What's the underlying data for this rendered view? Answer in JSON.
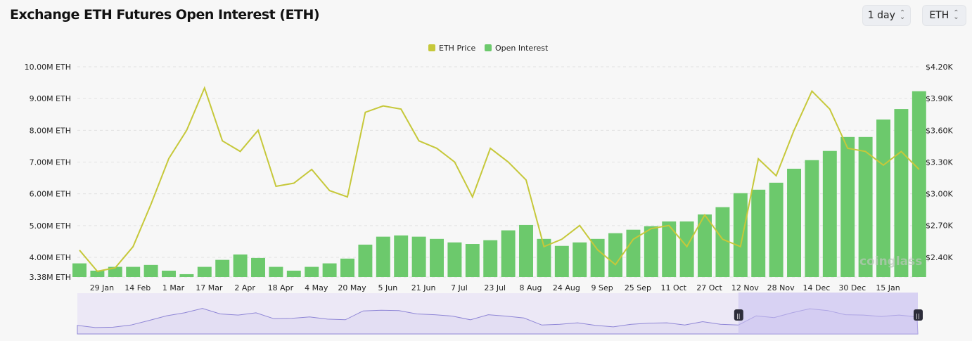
{
  "title": "Exchange ETH Futures Open Interest (ETH)",
  "controls": {
    "interval": "1 day",
    "coin": "ETH"
  },
  "watermark": "coinglass",
  "chart_data": {
    "type": "bar+line",
    "legend": [
      "ETH Price",
      "Open Interest"
    ],
    "legend_position": "top-center",
    "colors": {
      "price": "#c6c83a",
      "oi": "#6cc96c",
      "navigator": "#8f86d6"
    },
    "y_left": {
      "ticks": [
        "10.00M ETH",
        "9.00M ETH",
        "8.00M ETH",
        "7.00M ETH",
        "6.00M ETH",
        "5.00M ETH",
        "4.00M ETH",
        "3.38M ETH"
      ],
      "range": [
        3.38,
        10.0
      ],
      "unit": "M ETH"
    },
    "y_right": {
      "ticks": [
        "$4.20K",
        "$3.90K",
        "$3.60K",
        "$3.30K",
        "$3.00K",
        "$2.70K",
        "$2.40K"
      ],
      "range": [
        2213,
        4200
      ]
    },
    "x_ticks": [
      "29 Jan",
      "14 Feb",
      "1 Mar",
      "17 Mar",
      "2 Apr",
      "18 Apr",
      "4 May",
      "20 May",
      "5 Jun",
      "21 Jun",
      "7 Jul",
      "23 Jul",
      "8 Aug",
      "24 Aug",
      "9 Sep",
      "25 Sep",
      "11 Oct",
      "27 Oct",
      "12 Nov",
      "28 Nov",
      "14 Dec",
      "30 Dec",
      "15 Jan"
    ],
    "x": [
      "2024-01-18",
      "2024-01-26",
      "2024-02-03",
      "2024-02-11",
      "2024-02-19",
      "2024-02-27",
      "2024-03-06",
      "2024-03-14",
      "2024-03-22",
      "2024-03-30",
      "2024-04-07",
      "2024-04-15",
      "2024-04-23",
      "2024-05-01",
      "2024-05-09",
      "2024-05-17",
      "2024-05-25",
      "2024-06-02",
      "2024-06-10",
      "2024-06-18",
      "2024-06-26",
      "2024-07-04",
      "2024-07-12",
      "2024-07-20",
      "2024-07-28",
      "2024-08-05",
      "2024-08-13",
      "2024-08-21",
      "2024-08-29",
      "2024-09-06",
      "2024-09-14",
      "2024-09-22",
      "2024-09-30",
      "2024-10-08",
      "2024-10-16",
      "2024-10-24",
      "2024-11-01",
      "2024-11-09",
      "2024-11-17",
      "2024-11-25",
      "2024-12-03",
      "2024-12-11",
      "2024-12-19",
      "2024-12-27",
      "2025-01-04",
      "2025-01-12",
      "2025-01-20",
      "2025-01-28"
    ],
    "series": [
      {
        "name": "ETH Price",
        "type": "line",
        "values": [
          2467,
          2267,
          2300,
          2500,
          2900,
          3333,
          3600,
          4000,
          3500,
          3400,
          3600,
          3070,
          3100,
          3230,
          3030,
          2970,
          3770,
          3830,
          3800,
          3500,
          3430,
          3300,
          2970,
          3430,
          3300,
          3130,
          2500,
          2570,
          2700,
          2470,
          2330,
          2570,
          2670,
          2700,
          2500,
          2800,
          2570,
          2500,
          3330,
          3170,
          3600,
          3970,
          3800,
          3430,
          3400,
          3270,
          3400,
          3230
        ]
      },
      {
        "name": "Open Interest",
        "type": "bar",
        "values": [
          3.81,
          3.58,
          3.7,
          3.7,
          3.76,
          3.58,
          3.47,
          3.7,
          3.92,
          4.09,
          3.98,
          3.7,
          3.58,
          3.7,
          3.81,
          3.96,
          4.4,
          4.65,
          4.69,
          4.65,
          4.58,
          4.47,
          4.42,
          4.54,
          4.85,
          5.02,
          4.58,
          4.36,
          4.47,
          4.58,
          4.76,
          4.87,
          4.98,
          5.13,
          5.13,
          5.35,
          5.58,
          6.02,
          6.13,
          6.35,
          6.79,
          7.06,
          7.35,
          7.79,
          7.79,
          8.34,
          8.67,
          9.23
        ]
      }
    ],
    "navigator_selection": [
      "2024-11-09",
      "2025-01-28"
    ],
    "grid": true
  }
}
